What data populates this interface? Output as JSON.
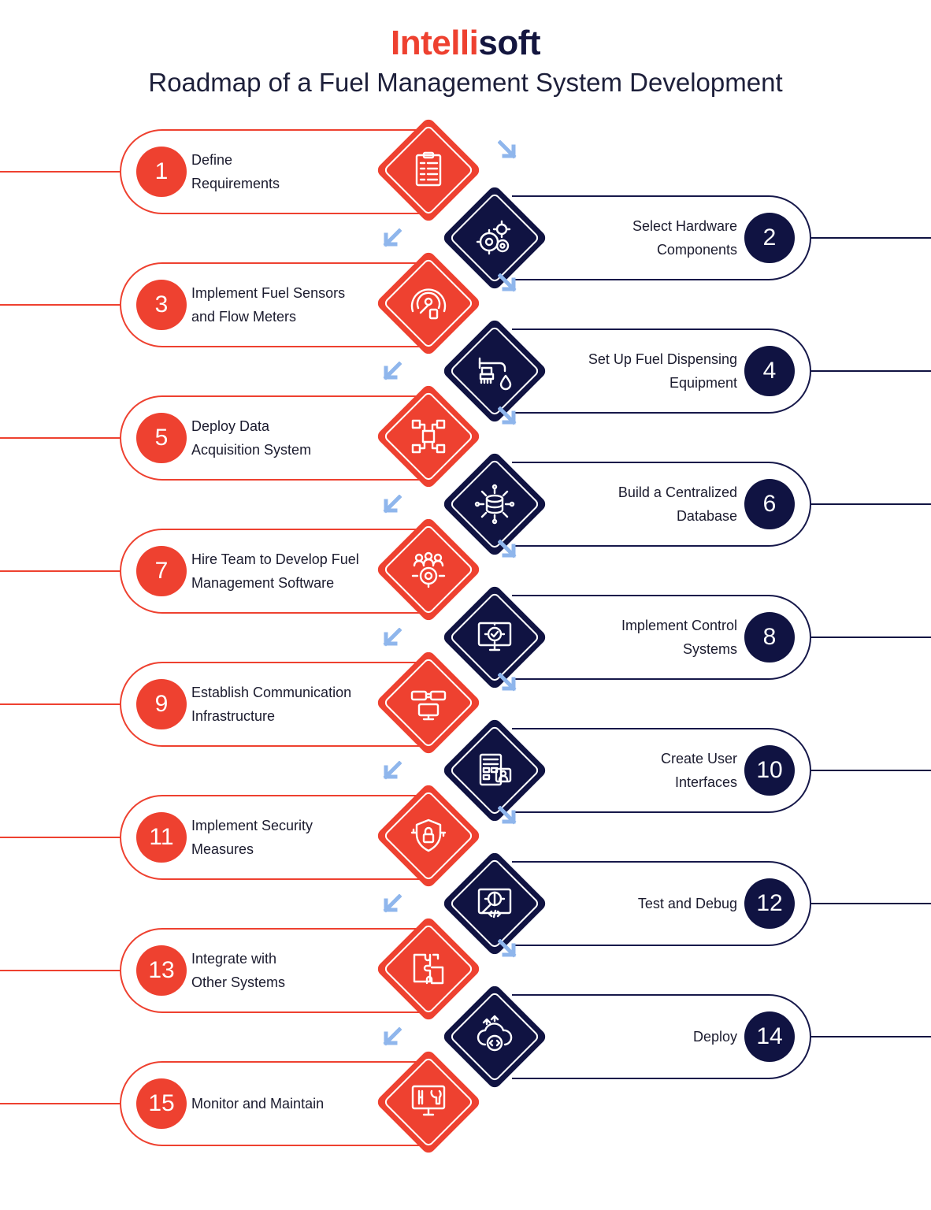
{
  "header": {
    "brand_part1": "Intelli",
    "brand_part2": "soft",
    "title": "Roadmap of a Fuel Management System Development"
  },
  "colors": {
    "red": "#ee4130",
    "navy": "#101342",
    "arrow": "#8fb6ec"
  },
  "steps": [
    {
      "number": "1",
      "label": "Define\nRequirements",
      "icon": "checklist-icon"
    },
    {
      "number": "2",
      "label": "Select Hardware\nComponents",
      "icon": "gears-icon"
    },
    {
      "number": "3",
      "label": "Implement Fuel Sensors\nand Flow Meters",
      "icon": "gauge-icon"
    },
    {
      "number": "4",
      "label": "Set Up Fuel Dispensing\nEquipment",
      "icon": "faucet-icon"
    },
    {
      "number": "5",
      "label": "Deploy Data\nAcquisition System",
      "icon": "circuit-icon"
    },
    {
      "number": "6",
      "label": "Build a Centralized\nDatabase",
      "icon": "database-icon"
    },
    {
      "number": "7",
      "label": "Hire Team to Develop Fuel\nManagement Software",
      "icon": "team-icon"
    },
    {
      "number": "8",
      "label": "Implement Control\nSystems",
      "icon": "monitor-gear-icon"
    },
    {
      "number": "9",
      "label": "Establish Communication\nInfrastructure",
      "icon": "network-icon"
    },
    {
      "number": "10",
      "label": "Create User\nInterfaces",
      "icon": "interface-icon"
    },
    {
      "number": "11",
      "label": "Implement Security\nMeasures",
      "icon": "shield-lock-icon"
    },
    {
      "number": "12",
      "label": "Test and Debug",
      "icon": "bug-search-icon"
    },
    {
      "number": "13",
      "label": "Integrate with\nOther Systems",
      "icon": "puzzle-icon"
    },
    {
      "number": "14",
      "label": "Deploy",
      "icon": "cloud-code-icon"
    },
    {
      "number": "15",
      "label": "Monitor and Maintain",
      "icon": "tools-monitor-icon"
    }
  ]
}
